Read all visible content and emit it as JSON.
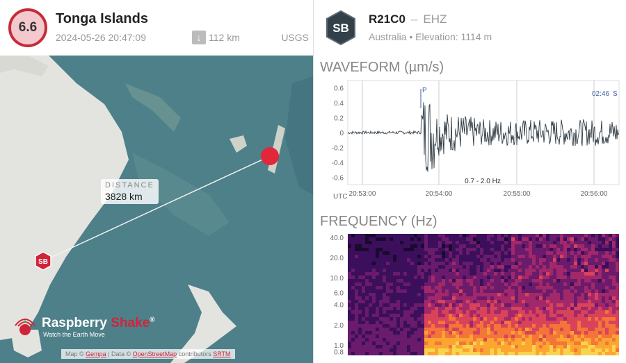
{
  "event": {
    "magnitude": "6.6",
    "region": "Tonga Islands",
    "datetime": "2024-05-26 20:47:09",
    "depth": "112 km",
    "source": "USGS",
    "depth_icon": "arrow-down-icon"
  },
  "map": {
    "distance_label": "DISTANCE",
    "distance_value": "3828 km",
    "station_marker": "SB",
    "logo_name_a": "Raspberry ",
    "logo_name_b": "Shake",
    "logo_reg": "®",
    "logo_tagline": "Watch the Earth Move",
    "attribution": {
      "a": "Map © ",
      "gempa": "Gempa",
      "b": " | Data © ",
      "osm": "OpenStreetMap",
      "c": " contributors ",
      "srtm": "SRTM"
    },
    "colors": {
      "water": "#4a7c86",
      "land": "#e4e4e0",
      "epicenter": "#e0283a"
    }
  },
  "station": {
    "badge": "SB",
    "code": "R21C0",
    "separator": "–",
    "channel": "EHZ",
    "country": "Australia",
    "bullet": "•",
    "elevation": "Elevation: 1114 m"
  },
  "waveform": {
    "title": "WAVEFORM (µm/s)",
    "y_ticks": [
      "0.6",
      "0.4",
      "0.2",
      "0",
      "-0.2",
      "-0.4",
      "-0.6"
    ],
    "x_ticks": [
      "20:53:00",
      "20:54:00",
      "20:55:00",
      "20:56:00"
    ],
    "x_unit": "UTC",
    "filter": "0.7 - 2.0 Hz",
    "p_marker": "P",
    "s_marker_time": "02:46",
    "s_marker": "S"
  },
  "frequency": {
    "title": "FREQUENCY (Hz)",
    "y_ticks": [
      "40.0",
      "20.0",
      "10.0",
      "6.0",
      "4.0",
      "2.0",
      "1.0",
      "0.8"
    ]
  }
}
